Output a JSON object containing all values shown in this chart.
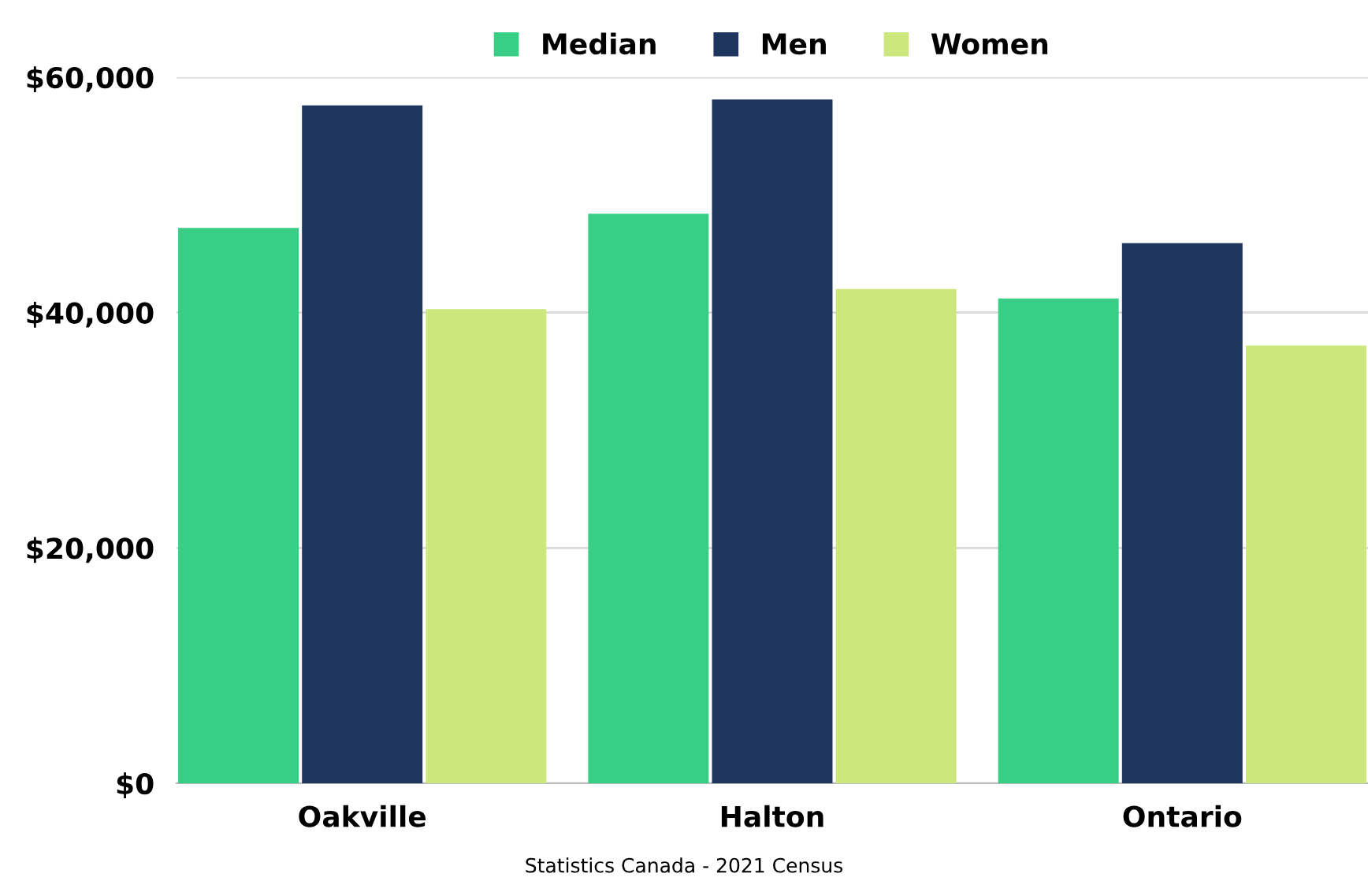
{
  "chart_data": {
    "type": "bar",
    "categories": [
      "Oakville",
      "Halton",
      "Ontario"
    ],
    "series": [
      {
        "name": "Median",
        "color": "#36cf85",
        "values": [
          47200,
          48400,
          41200
        ]
      },
      {
        "name": "Men",
        "color": "#1e365d",
        "values": [
          57600,
          58100,
          45900
        ]
      },
      {
        "name": "Women",
        "color": "#cbe77d",
        "values": [
          40300,
          42000,
          37200
        ]
      }
    ],
    "ylim": [
      0,
      60000
    ],
    "yticks": [
      {
        "value": 0,
        "label": "$0"
      },
      {
        "value": 20000,
        "label": "$20,000"
      },
      {
        "value": 40000,
        "label": "$40,000"
      },
      {
        "value": 60000,
        "label": "$60,000"
      }
    ],
    "grid": "y",
    "legend": "top",
    "annotations": [
      "Statistics Canada - 2021 Census"
    ]
  }
}
